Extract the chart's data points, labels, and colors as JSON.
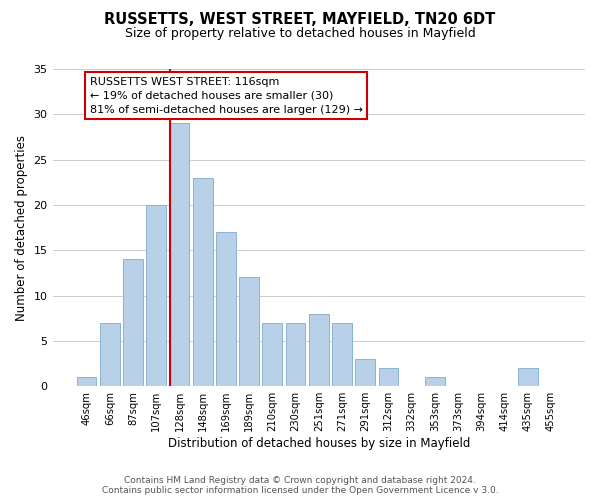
{
  "title": "RUSSETTS, WEST STREET, MAYFIELD, TN20 6DT",
  "subtitle": "Size of property relative to detached houses in Mayfield",
  "xlabel": "Distribution of detached houses by size in Mayfield",
  "ylabel": "Number of detached properties",
  "footer_line1": "Contains HM Land Registry data © Crown copyright and database right 2024.",
  "footer_line2": "Contains public sector information licensed under the Open Government Licence v 3.0.",
  "bar_labels": [
    "46sqm",
    "66sqm",
    "87sqm",
    "107sqm",
    "128sqm",
    "148sqm",
    "169sqm",
    "189sqm",
    "210sqm",
    "230sqm",
    "251sqm",
    "271sqm",
    "291sqm",
    "312sqm",
    "332sqm",
    "353sqm",
    "373sqm",
    "394sqm",
    "414sqm",
    "435sqm",
    "455sqm"
  ],
  "bar_values": [
    1,
    7,
    14,
    20,
    29,
    23,
    17,
    12,
    7,
    7,
    8,
    7,
    3,
    2,
    0,
    1,
    0,
    0,
    0,
    2,
    0
  ],
  "bar_color": "#b8d0e8",
  "bar_edge_color": "#8ab4d4",
  "vline_bar_index": 4,
  "vline_color": "#cc0000",
  "ylim": [
    0,
    35
  ],
  "yticks": [
    0,
    5,
    10,
    15,
    20,
    25,
    30,
    35
  ],
  "annotation_title": "RUSSETTS WEST STREET: 116sqm",
  "annotation_line1": "← 19% of detached houses are smaller (30)",
  "annotation_line2": "81% of semi-detached houses are larger (129) →",
  "bg_color": "#ffffff",
  "grid_color": "#cccccc"
}
